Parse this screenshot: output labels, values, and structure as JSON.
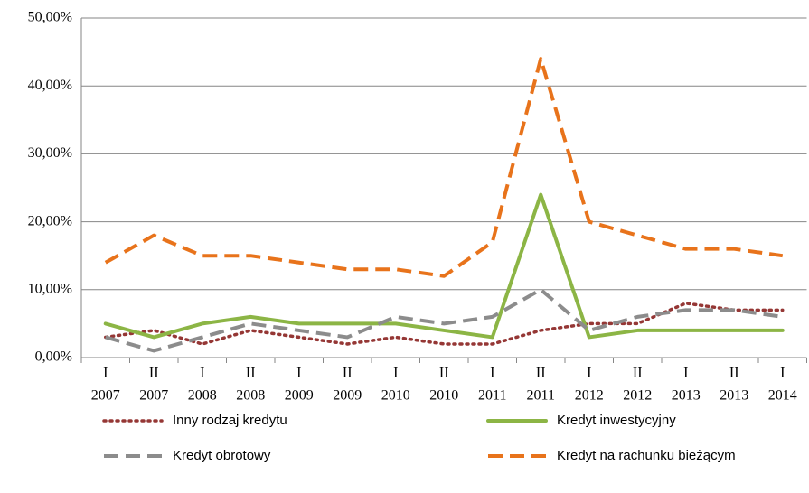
{
  "chart_data": {
    "type": "line",
    "categories": [
      [
        "I",
        "2007"
      ],
      [
        "II",
        "2007"
      ],
      [
        "I",
        "2008"
      ],
      [
        "II",
        "2008"
      ],
      [
        "I",
        "2009"
      ],
      [
        "II",
        "2009"
      ],
      [
        "I",
        "2010"
      ],
      [
        "II",
        "2010"
      ],
      [
        "I",
        "2011"
      ],
      [
        "II",
        "2011"
      ],
      [
        "I",
        "2012"
      ],
      [
        "II",
        "2012"
      ],
      [
        "I",
        "2013"
      ],
      [
        "II",
        "2013"
      ],
      [
        "I",
        "2014"
      ]
    ],
    "series": [
      {
        "name": "Inny rodzaj kredytu",
        "color": "#953735",
        "dash": "dot",
        "values": [
          3,
          4,
          2,
          4,
          3,
          2,
          3,
          2,
          2,
          4,
          5,
          5,
          8,
          7,
          7
        ]
      },
      {
        "name": "Kredyt inwestycyjny",
        "color": "#8cb545",
        "dash": "solid",
        "values": [
          5,
          3,
          5,
          6,
          5,
          5,
          5,
          4,
          3,
          24,
          3,
          4,
          4,
          4,
          4
        ]
      },
      {
        "name": "Kredyt obrotowy",
        "color": "#8c8c8c",
        "dash": "dash",
        "values": [
          3,
          1,
          3,
          5,
          4,
          3,
          6,
          5,
          6,
          10,
          4,
          6,
          7,
          7,
          6
        ]
      },
      {
        "name": "Kredyt na rachunku bieżącym",
        "color": "#e8731b",
        "dash": "dash",
        "values": [
          14,
          18,
          15,
          15,
          14,
          13,
          13,
          12,
          17,
          44,
          20,
          18,
          16,
          16,
          15
        ]
      }
    ],
    "ylim": [
      0,
      50
    ],
    "yticks": [
      {
        "value": 0,
        "label": "0,00%"
      },
      {
        "value": 10,
        "label": "10,00%"
      },
      {
        "value": 20,
        "label": "20,00%"
      },
      {
        "value": 30,
        "label": "30,00%"
      },
      {
        "value": 40,
        "label": "40,00%"
      },
      {
        "value": 50,
        "label": "50,00%"
      }
    ],
    "grid": true
  }
}
